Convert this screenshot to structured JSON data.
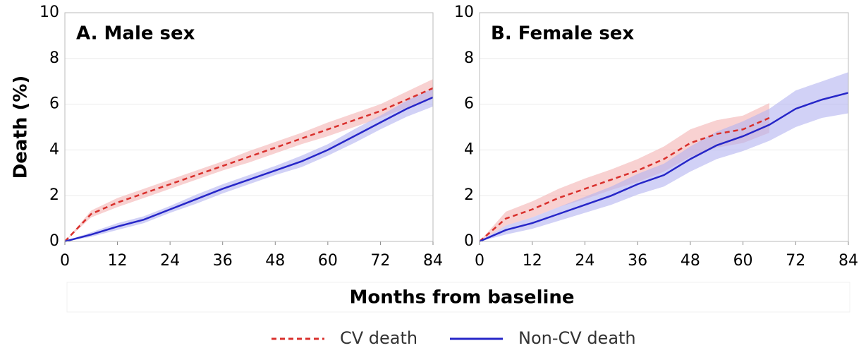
{
  "y_label": "Death (%)",
  "x_label": "Months from baseline",
  "chart_data": [
    {
      "type": "line",
      "title": "A. Male sex",
      "x": [
        0,
        6,
        12,
        18,
        24,
        30,
        36,
        42,
        48,
        54,
        60,
        66,
        72,
        78,
        84
      ],
      "xlim": [
        0,
        84
      ],
      "xticks": [
        0,
        12,
        24,
        36,
        48,
        60,
        72,
        84
      ],
      "ylim": [
        0,
        10
      ],
      "yticks": [
        0,
        2,
        4,
        6,
        8,
        10
      ],
      "grid": true,
      "series": [
        {
          "name": "CV death",
          "color": "#d9302c",
          "band_color": "#f4b3b3",
          "line_style": "dashed",
          "values": [
            0,
            1.2,
            1.7,
            2.1,
            2.5,
            2.9,
            3.3,
            3.7,
            4.1,
            4.5,
            4.9,
            5.3,
            5.7,
            6.2,
            6.7
          ],
          "lower": [
            0,
            1.05,
            1.5,
            1.9,
            2.3,
            2.7,
            3.1,
            3.45,
            3.85,
            4.25,
            4.6,
            5.0,
            5.4,
            5.85,
            6.3
          ],
          "upper": [
            0,
            1.35,
            1.9,
            2.3,
            2.7,
            3.1,
            3.5,
            3.95,
            4.35,
            4.75,
            5.2,
            5.6,
            6.0,
            6.55,
            7.1
          ]
        },
        {
          "name": "Non-CV death",
          "color": "#2626c8",
          "band_color": "#b3b3f0",
          "line_style": "solid",
          "values": [
            0,
            0.3,
            0.65,
            0.95,
            1.4,
            1.85,
            2.3,
            2.7,
            3.1,
            3.5,
            4.0,
            4.6,
            5.2,
            5.8,
            6.3
          ],
          "lower": [
            0,
            0.2,
            0.5,
            0.8,
            1.25,
            1.65,
            2.1,
            2.5,
            2.9,
            3.25,
            3.75,
            4.3,
            4.9,
            5.45,
            5.9
          ],
          "upper": [
            0,
            0.4,
            0.8,
            1.1,
            1.55,
            2.05,
            2.5,
            2.9,
            3.3,
            3.75,
            4.25,
            4.9,
            5.5,
            6.15,
            6.7
          ]
        }
      ]
    },
    {
      "type": "line",
      "title": "B. Female sex",
      "x": [
        0,
        6,
        12,
        18,
        24,
        30,
        36,
        42,
        48,
        54,
        60,
        66,
        72,
        78,
        84
      ],
      "xlim": [
        0,
        84
      ],
      "xticks": [
        0,
        12,
        24,
        36,
        48,
        60,
        72,
        84
      ],
      "ylim": [
        0,
        10
      ],
      "yticks": [
        0,
        2,
        4,
        6,
        8,
        10
      ],
      "grid": true,
      "series": [
        {
          "name": "CV death",
          "color": "#d9302c",
          "band_color": "#f4b3b3",
          "line_style": "dashed",
          "values": [
            0,
            1.0,
            1.4,
            1.9,
            2.3,
            2.7,
            3.1,
            3.6,
            4.3,
            4.7,
            4.9,
            5.4,
            null,
            null,
            null
          ],
          "lower": [
            0,
            0.7,
            1.05,
            1.5,
            1.85,
            2.25,
            2.6,
            3.05,
            3.7,
            4.1,
            4.3,
            4.75,
            null,
            null,
            null
          ],
          "upper": [
            0,
            1.3,
            1.75,
            2.3,
            2.75,
            3.15,
            3.6,
            4.15,
            4.9,
            5.3,
            5.5,
            6.05,
            null,
            null,
            null
          ]
        },
        {
          "name": "Non-CV death",
          "color": "#2626c8",
          "band_color": "#b3b3f0",
          "line_style": "solid",
          "values": [
            0,
            0.5,
            0.8,
            1.2,
            1.6,
            2.0,
            2.5,
            2.9,
            3.6,
            4.2,
            4.6,
            5.1,
            5.8,
            6.2,
            6.5
          ],
          "lower": [
            0,
            0.3,
            0.55,
            0.9,
            1.25,
            1.6,
            2.05,
            2.4,
            3.05,
            3.6,
            3.95,
            4.4,
            5.0,
            5.4,
            5.6
          ],
          "upper": [
            0,
            0.7,
            1.05,
            1.5,
            1.95,
            2.4,
            2.95,
            3.4,
            4.15,
            4.8,
            5.25,
            5.8,
            6.6,
            7.0,
            7.4
          ]
        }
      ]
    }
  ]
}
